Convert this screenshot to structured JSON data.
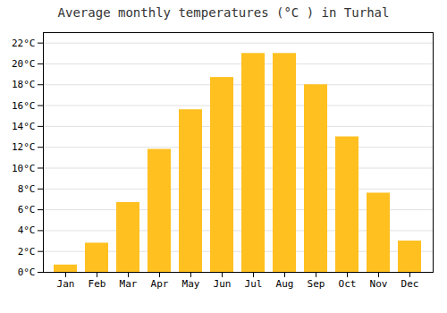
{
  "chart_data": {
    "type": "bar",
    "title": "Average monthly temperatures (°C ) in Turhal",
    "categories": [
      "Jan",
      "Feb",
      "Mar",
      "Apr",
      "May",
      "Jun",
      "Jul",
      "Aug",
      "Sep",
      "Oct",
      "Nov",
      "Dec"
    ],
    "values": [
      0.7,
      2.8,
      6.7,
      11.8,
      15.6,
      18.7,
      21.0,
      21.0,
      18.0,
      13.0,
      7.6,
      3.0
    ],
    "color": "#FFC020",
    "ylim": [
      0,
      23
    ],
    "yticks": [
      {
        "value": 0,
        "label": "0°C"
      },
      {
        "value": 2,
        "label": "2°C"
      },
      {
        "value": 4,
        "label": "4°C"
      },
      {
        "value": 6,
        "label": "6°C"
      },
      {
        "value": 8,
        "label": "8°C"
      },
      {
        "value": 10,
        "label": "10°C"
      },
      {
        "value": 12,
        "label": "12°C"
      },
      {
        "value": 14,
        "label": "14°C"
      },
      {
        "value": 16,
        "label": "16°C"
      },
      {
        "value": 18,
        "label": "18°C"
      },
      {
        "value": 20,
        "label": "20°C"
      },
      {
        "value": 22,
        "label": "22°C"
      }
    ],
    "grid": true
  }
}
